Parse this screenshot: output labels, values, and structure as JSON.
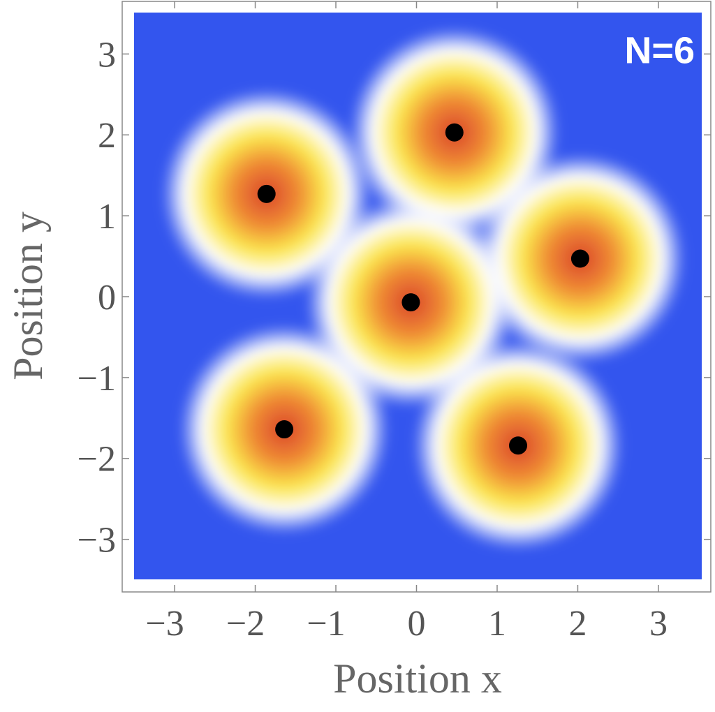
{
  "chart_data": {
    "type": "scatter",
    "annotation": "N=6",
    "x_label": "Position x",
    "y_label": "Position y",
    "x": [
      0.47,
      -1.86,
      2.03,
      -0.07,
      -1.64,
      1.26
    ],
    "values": [
      2.03,
      1.27,
      0.47,
      -0.07,
      -1.64,
      -1.84
    ],
    "color": "#000000",
    "background_color": "#3355ee",
    "xlim": [
      -3.65,
      3.65
    ],
    "ylim": [
      -3.65,
      3.65
    ],
    "xticks": [
      {
        "value": -3,
        "label": "−3"
      },
      {
        "value": -2,
        "label": "−2"
      },
      {
        "value": -1,
        "label": "−1"
      },
      0,
      1,
      2,
      3
    ],
    "yticks": [
      {
        "value": -3,
        "label": "−3"
      },
      {
        "value": -2,
        "label": "−2"
      },
      {
        "value": -1,
        "label": "−1"
      },
      0,
      1,
      2,
      3
    ]
  }
}
